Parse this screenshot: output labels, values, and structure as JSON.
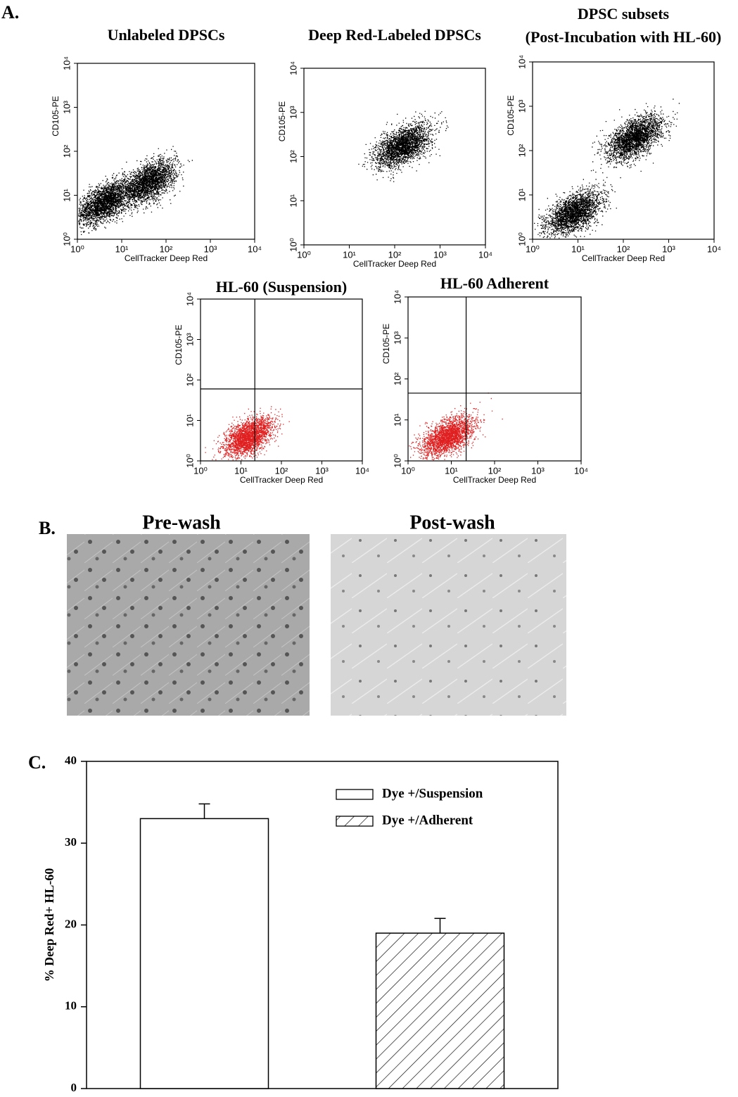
{
  "panel_labels": [
    "A.",
    "B.",
    "C."
  ],
  "images": [
    {
      "title": "Pre-wash"
    },
    {
      "title": "Post-wash"
    }
  ],
  "chart_data": [
    {
      "type": "scatter",
      "title": "Unlabeled DPSCs",
      "xlabel": "CellTracker Deep Red",
      "ylabel": "CD105-PE",
      "log": true,
      "xlim": [
        1,
        10000
      ],
      "ylim": [
        1,
        10000
      ],
      "xticks": [
        {
          "value": 1,
          "label": "10⁰"
        },
        {
          "value": 10,
          "label": "10¹"
        },
        {
          "value": 100,
          "label": "10²"
        },
        {
          "value": 1000,
          "label": "10³"
        },
        {
          "value": 10000,
          "label": "10⁴"
        }
      ],
      "yticks": [
        {
          "value": 1,
          "label": "10⁰"
        },
        {
          "value": 10,
          "label": "10¹"
        },
        {
          "value": 100,
          "label": "10²"
        },
        {
          "value": 1000,
          "label": "10³"
        },
        {
          "value": 10000,
          "label": "10⁴"
        }
      ],
      "color": "#000000",
      "clusters": [
        {
          "x": 4,
          "y": 7
        },
        {
          "x": 40,
          "y": 20
        }
      ]
    },
    {
      "type": "scatter",
      "title": "Deep Red-Labeled DPSCs",
      "xlabel": "CellTracker Deep Red",
      "ylabel": "CD105-PE",
      "log": true,
      "xlim": [
        1,
        10000
      ],
      "ylim": [
        1,
        10000
      ],
      "xticks": [
        {
          "value": 1,
          "label": "10⁰"
        },
        {
          "value": 10,
          "label": "10¹"
        },
        {
          "value": 100,
          "label": "10²"
        },
        {
          "value": 1000,
          "label": "10³"
        },
        {
          "value": 10000,
          "label": "10⁴"
        }
      ],
      "yticks": [
        {
          "value": 1,
          "label": "10⁰"
        },
        {
          "value": 10,
          "label": "10¹"
        },
        {
          "value": 100,
          "label": "10²"
        },
        {
          "value": 1000,
          "label": "10³"
        },
        {
          "value": 10000,
          "label": "10⁴"
        }
      ],
      "color": "#000000",
      "clusters": [
        {
          "x": 150,
          "y": 180
        }
      ]
    },
    {
      "type": "scatter",
      "title": [
        "DPSC subsets",
        "(Post-Incubation with HL-60)"
      ],
      "xlabel": "CellTracker Deep Red",
      "ylabel": "CD105-PE",
      "log": true,
      "xlim": [
        1,
        10000
      ],
      "ylim": [
        1,
        10000
      ],
      "xticks": [
        {
          "value": 1,
          "label": "10⁰"
        },
        {
          "value": 10,
          "label": "10¹"
        },
        {
          "value": 100,
          "label": "10²"
        },
        {
          "value": 1000,
          "label": "10³"
        },
        {
          "value": 10000,
          "label": "10⁴"
        }
      ],
      "yticks": [
        {
          "value": 1,
          "label": "10⁰"
        },
        {
          "value": 10,
          "label": "10¹"
        },
        {
          "value": 100,
          "label": "10²"
        },
        {
          "value": 1000,
          "label": "10³"
        },
        {
          "value": 10000,
          "label": "10⁴"
        }
      ],
      "color": "#000000",
      "clusters": [
        {
          "x": 180,
          "y": 200
        },
        {
          "x": 8,
          "y": 4
        }
      ]
    },
    {
      "type": "scatter",
      "title": "HL-60 (Suspension)",
      "xlabel": "CellTracker Deep Red",
      "ylabel": "CD105-PE",
      "log": true,
      "xlim": [
        1,
        10000
      ],
      "ylim": [
        1,
        10000
      ],
      "xticks": [
        {
          "value": 1,
          "label": "10⁰"
        },
        {
          "value": 10,
          "label": "10¹"
        },
        {
          "value": 100,
          "label": "10²"
        },
        {
          "value": 1000,
          "label": "10³"
        },
        {
          "value": 10000,
          "label": "10⁴"
        }
      ],
      "yticks": [
        {
          "value": 1,
          "label": "10⁰"
        },
        {
          "value": 10,
          "label": "10¹"
        },
        {
          "value": 100,
          "label": "10²"
        },
        {
          "value": 1000,
          "label": "10³"
        },
        {
          "value": 10000,
          "label": "10⁴"
        }
      ],
      "color": "#e02020",
      "clusters": [
        {
          "x": 15,
          "y": 4
        }
      ],
      "quadrant": {
        "x": 22,
        "y": 60
      }
    },
    {
      "type": "scatter",
      "title": "HL-60 Adherent",
      "xlabel": "CellTracker Deep Red",
      "ylabel": "CD105-PE",
      "log": true,
      "xlim": [
        1,
        10000
      ],
      "ylim": [
        1,
        10000
      ],
      "xticks": [
        {
          "value": 1,
          "label": "10⁰"
        },
        {
          "value": 10,
          "label": "10¹"
        },
        {
          "value": 100,
          "label": "10²"
        },
        {
          "value": 1000,
          "label": "10³"
        },
        {
          "value": 10000,
          "label": "10⁴"
        }
      ],
      "yticks": [
        {
          "value": 1,
          "label": "10⁰"
        },
        {
          "value": 10,
          "label": "10¹"
        },
        {
          "value": 100,
          "label": "10²"
        },
        {
          "value": 1000,
          "label": "10³"
        },
        {
          "value": 10000,
          "label": "10⁴"
        }
      ],
      "color": "#e02020",
      "clusters": [
        {
          "x": 8,
          "y": 4
        }
      ],
      "quadrant": {
        "x": 22,
        "y": 45
      }
    },
    {
      "type": "bar",
      "ylabel": "% Deep Red+ HL-60",
      "ylim": [
        0,
        40
      ],
      "yticks": [
        0,
        10,
        20,
        30,
        40
      ],
      "categories": [
        null,
        null
      ],
      "legend": "upper-right",
      "series": [
        {
          "name": "Dye +/Suspension",
          "color": "#ffffff",
          "pattern": "solid",
          "values": [
            33,
            null
          ],
          "errors": [
            1.8,
            null
          ]
        },
        {
          "name": "Dye +/Adherent",
          "color": "#ffffff",
          "pattern": "hatch",
          "values": [
            null,
            19
          ],
          "errors": [
            null,
            1.8
          ]
        }
      ]
    }
  ]
}
